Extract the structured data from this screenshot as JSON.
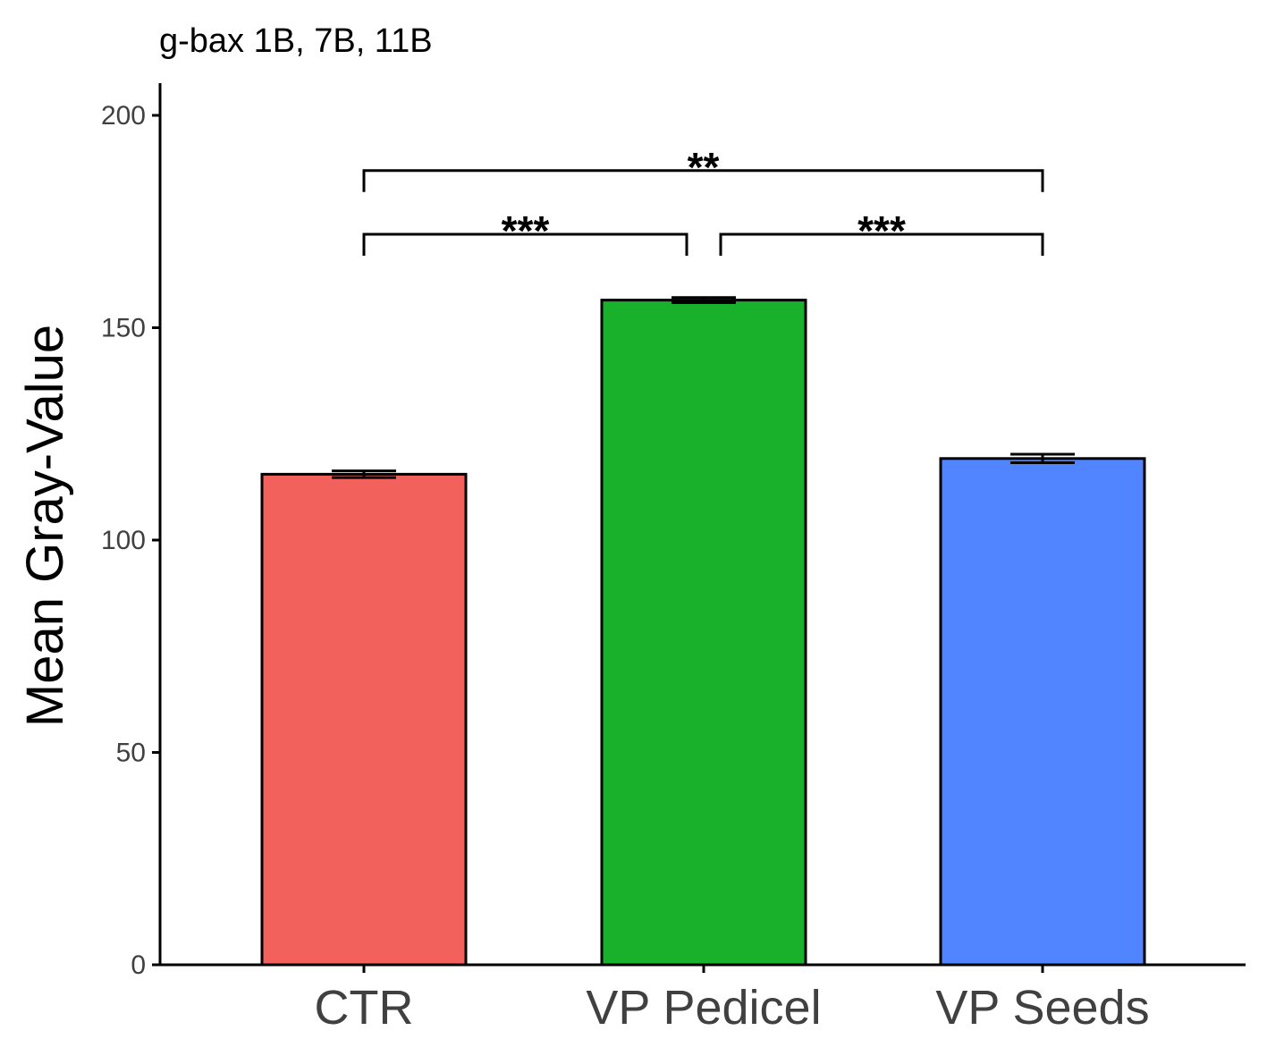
{
  "chart_data": {
    "type": "bar",
    "title": "g-bax 1B, 7B, 11B",
    "xlabel": "",
    "ylabel": "Mean Gray-Value",
    "categories": [
      "CTR",
      "VP Pedicel",
      "VP Seeds"
    ],
    "values": [
      115.5,
      156.5,
      119.2
    ],
    "errors": [
      0.8,
      0.6,
      1.0
    ],
    "colors": [
      "#F3615C",
      "#19B02C",
      "#5085FF"
    ],
    "ylim": [
      0,
      207
    ],
    "yticks": [
      "0",
      "50",
      "100",
      "150",
      "200"
    ],
    "grid": false,
    "legend": "none",
    "significance": [
      {
        "from": 0,
        "to": 1,
        "label": "***",
        "y": 172
      },
      {
        "from": 1,
        "to": 2,
        "label": "***",
        "y": 172
      },
      {
        "from": 0,
        "to": 2,
        "label": "**",
        "y": 187
      }
    ]
  }
}
